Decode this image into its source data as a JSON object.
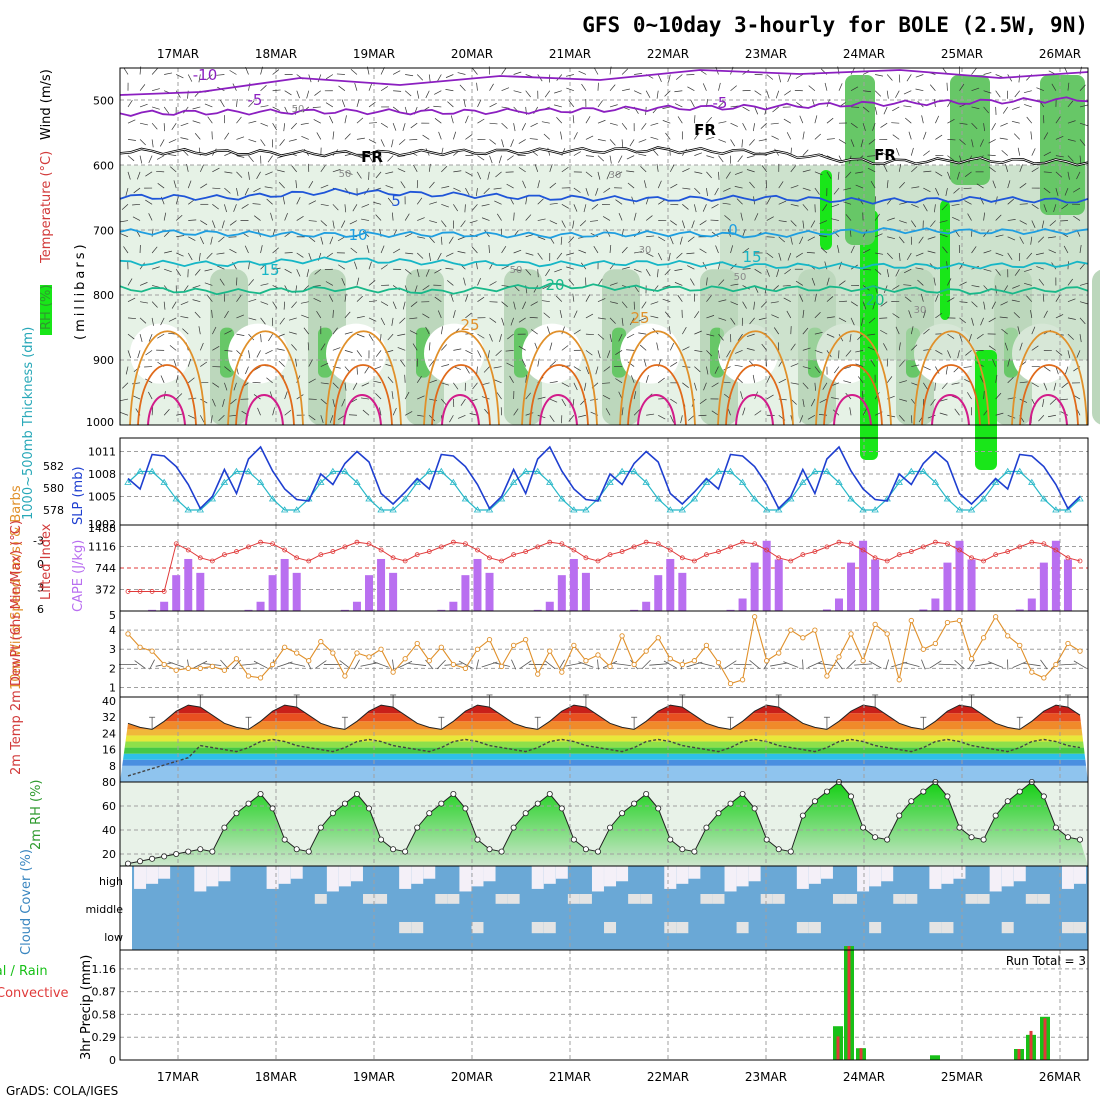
{
  "title": "GFS 0~10day 3-hourly for BOLE (2.5W, 9N)",
  "credit": "GrADS: COLA/IGES",
  "dates": [
    "17MAR",
    "18MAR",
    "19MAR",
    "20MAR",
    "21MAR",
    "22MAR",
    "23MAR",
    "24MAR",
    "25MAR",
    "26MAR"
  ],
  "colors": {
    "rh_light": "#e6f2e6",
    "rh_mid": "#bcd7bc",
    "rh_dark": "#67c767",
    "rh_bright": "#19e619",
    "temp_purple": "#8b1fc0",
    "temp_blue1": "#1f55d8",
    "temp_blue2": "#1f9ee0",
    "temp_cyan": "#16b6c6",
    "temp_green": "#19b88a",
    "temp_orange": "#e0902a",
    "temp_magenta": "#d21c8a",
    "slp": "#1f3fd0",
    "thickness": "#28b8c8",
    "cape": "#b96ff0",
    "li": "#e03a3a",
    "wind": "#e0902a",
    "precip_total": "#18c018",
    "precip_conv": "#e03a3a",
    "cloud_clear": "#6aa8d6"
  },
  "panels": {
    "upper": {
      "ylabel_wind": "Wind (m/s)",
      "ylabel_temp": "Temperature (°C)",
      "ylabel_rh": "RH (%)",
      "ylabel_mb": "(millibars)",
      "yticks": [
        "500",
        "600",
        "700",
        "800",
        "900",
        "1000"
      ],
      "contour_labels": [
        {
          "text": "-10",
          "color": "#8b1fc0"
        },
        {
          "text": "-5",
          "color": "#8b1fc0"
        },
        {
          "text": "-5",
          "color": "#8b1fc0"
        },
        {
          "text": "FR",
          "color": "#000000"
        },
        {
          "text": "FR",
          "color": "#000000"
        },
        {
          "text": "FR",
          "color": "#000000"
        },
        {
          "text": "5",
          "color": "#1f55d8"
        },
        {
          "text": "10",
          "color": "#1f9ee0"
        },
        {
          "text": "0",
          "color": "#1f9ee0"
        },
        {
          "text": "15",
          "color": "#16b6c6"
        },
        {
          "text": "15",
          "color": "#16b6c6"
        },
        {
          "text": "20",
          "color": "#19b88a"
        },
        {
          "text": "20",
          "color": "#19b88a"
        },
        {
          "text": "25",
          "color": "#e0902a"
        },
        {
          "text": "25",
          "color": "#e0902a"
        },
        {
          "text": "50",
          "color": "#8a8a8a"
        },
        {
          "text": "30",
          "color": "#8a8a8a"
        },
        {
          "text": "30",
          "color": "#8a8a8a"
        },
        {
          "text": "50",
          "color": "#8a8a8a"
        },
        {
          "text": "50",
          "color": "#8a8a8a"
        },
        {
          "text": "30",
          "color": "#8a8a8a"
        },
        {
          "text": "50",
          "color": "#8a8a8a"
        }
      ]
    },
    "slp": {
      "ylabel_left": "1000~500mb Thickness (dm)",
      "ylabel_right": "SLP (mb)",
      "yticks_left": [
        "582",
        "580",
        "578"
      ],
      "yticks_right": [
        "1011",
        "1008",
        "1005",
        "1002"
      ]
    },
    "cape": {
      "ylabel_left": "Lifted Index",
      "ylabel_right": "CAPE (J/kg)",
      "yticks_left": [
        "-3",
        "0",
        "3",
        "6"
      ],
      "yticks_right": [
        "1488",
        "1116",
        "744",
        "372"
      ]
    },
    "wind": {
      "ylabel": "10m Wind Speed (m/s) & Barbs",
      "yticks": [
        "5",
        "4",
        "3",
        "2",
        "1"
      ]
    },
    "temp": {
      "ylabel": "2m Temp 2m DewPt (6hr Min/Max) (°C)",
      "yticks": [
        "40",
        "32",
        "24",
        "16",
        "8"
      ]
    },
    "rh": {
      "ylabel": "2m RH (%)",
      "yticks": [
        "80",
        "60",
        "40",
        "20"
      ]
    },
    "cloud": {
      "ylabel": "Cloud Cover (%)",
      "levels": [
        "high",
        "middle",
        "low"
      ]
    },
    "precip": {
      "ylabel_a": "Total / Rain",
      "ylabel_b": "Convective",
      "ylabel_c": "3hr Precip (mm)",
      "run_total": "Run Total = 3",
      "yticks": [
        "1.16",
        "0.87",
        "0.58",
        "0.29",
        "0"
      ]
    }
  },
  "chart_data": [
    {
      "type": "line",
      "name": "upper-air",
      "x": [
        "17MAR",
        "18MAR",
        "19MAR",
        "20MAR",
        "21MAR",
        "22MAR",
        "23MAR",
        "24MAR",
        "25MAR",
        "26MAR"
      ],
      "y_unit": "mb",
      "ylim": [
        450,
        1000
      ],
      "series": [
        {
          "name": "-5",
          "values": [
            520,
            518,
            517,
            518,
            516,
            512,
            510,
            505,
            502,
            498
          ]
        },
        {
          "name": "FR",
          "values": [
            578,
            580,
            582,
            580,
            578,
            576,
            580,
            595,
            592,
            596
          ]
        },
        {
          "name": "5",
          "values": [
            648,
            650,
            640,
            645,
            650,
            652,
            650,
            655,
            652,
            655
          ]
        },
        {
          "name": "10",
          "values": [
            702,
            705,
            707,
            706,
            708,
            705,
            708,
            700,
            702,
            702
          ]
        },
        {
          "name": "15",
          "values": [
            750,
            752,
            745,
            750,
            752,
            750,
            755,
            755,
            755,
            752
          ]
        },
        {
          "name": "20",
          "values": [
            790,
            795,
            790,
            795,
            785,
            790,
            790,
            790,
            795,
            790
          ]
        }
      ]
    },
    {
      "type": "line",
      "name": "slp-thickness",
      "x_count": 80,
      "ylim_slp": [
        1002,
        1012
      ],
      "ylim_thk": [
        577,
        584
      ],
      "slp_cycle": [
        1008,
        1006,
        1010,
        1011,
        1009,
        1006,
        1004,
        1005
      ],
      "thk_cycle": [
        580.5,
        581.5,
        581.5,
        580.5,
        579,
        578,
        578,
        579
      ]
    },
    {
      "type": "bar",
      "name": "cape-li",
      "x_count": 80,
      "ylim_cape": [
        0,
        1488
      ],
      "ylim_li": [
        6,
        -5
      ],
      "cape_cycle": [
        0,
        0,
        20,
        160,
        620,
        900,
        660,
        0
      ],
      "li_cycle": [
        -1.2,
        -1.6,
        -2.2,
        -2.8,
        -2.6,
        -1.8,
        -0.8,
        -0.4
      ]
    },
    {
      "type": "line",
      "name": "10m-wind",
      "x_count": 80,
      "ylim": [
        0.5,
        5
      ],
      "values": [
        3.8,
        3.1,
        2.9,
        2.2,
        1.9,
        2.0,
        2.0,
        2.1,
        1.9,
        2.5,
        1.6,
        1.5,
        2.2,
        3.1,
        2.8,
        2.4,
        3.4,
        2.8,
        1.6,
        2.8,
        2.6,
        3.0,
        1.8,
        2.5,
        3.3,
        2.4,
        3.1,
        2.2,
        2.0,
        3.0,
        3.5,
        2.1,
        3.2,
        3.5,
        1.7,
        2.9,
        1.8,
        3.2,
        2.4,
        2.7,
        2.1,
        3.7,
        2.2,
        2.9,
        3.6,
        2.5,
        2.2,
        2.4,
        3.2,
        2.3,
        1.2,
        1.4,
        4.7,
        2.4,
        2.8,
        4.0,
        3.6,
        4.0,
        1.6,
        2.6,
        3.8,
        2.4,
        4.3,
        3.8,
        1.4,
        4.5,
        3.0,
        3.3,
        4.4,
        4.5,
        2.5,
        3.6,
        4.7,
        3.7,
        3.2,
        1.8,
        1.5,
        2.2,
        3.3,
        2.9
      ]
    },
    {
      "type": "area",
      "name": "2m-temp",
      "x_count": 80,
      "ylim": [
        0,
        42
      ],
      "temp_cycle": [
        29,
        27,
        26,
        30,
        35,
        38,
        37,
        33
      ],
      "dew_cycle": [
        16,
        15,
        17,
        20,
        21,
        20,
        18,
        17
      ]
    },
    {
      "type": "area",
      "name": "2m-rh",
      "x_count": 80,
      "ylim": [
        10,
        80
      ],
      "rh_cycle": [
        42,
        54,
        62,
        70,
        58,
        32,
        24,
        22
      ]
    },
    {
      "type": "bar",
      "name": "precip",
      "x": [
        "23MAR 18Z",
        "23MAR 21Z",
        "24MAR 00Z",
        "24MAR 03Z",
        "24MAR 21Z",
        "25MAR 18Z",
        "25MAR 21Z",
        "26MAR 00Z"
      ],
      "ylim": [
        0,
        1.4
      ],
      "series": [
        {
          "name": "Total",
          "values": [
            0.43,
            1.45,
            0.15,
            0,
            0.06,
            0.14,
            0.32,
            0.55
          ]
        },
        {
          "name": "Convective",
          "values": [
            0.3,
            1.45,
            0.15,
            0,
            0.0,
            0.14,
            0.37,
            0.53
          ]
        }
      ]
    }
  ]
}
